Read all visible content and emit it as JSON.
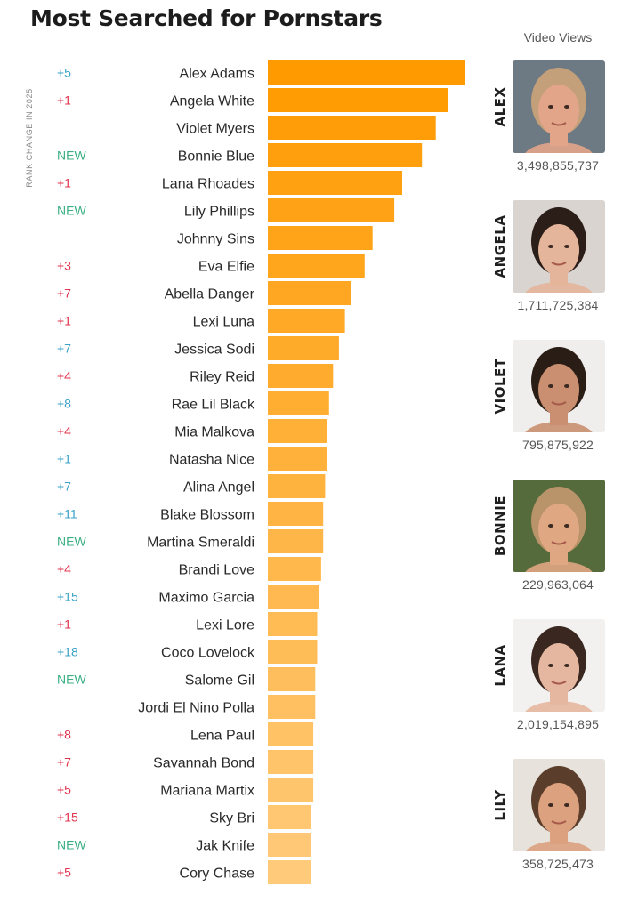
{
  "title": "Most Searched for Pornstars",
  "side_label": "RANK CHANGE IN 2025",
  "views_header": "Video Views",
  "colors": {
    "bar_top": "#ff9a00",
    "bar_bottom": "#ffca7a",
    "up": "#3aa3c7",
    "down": "#e0344f",
    "new": "#3aaf84"
  },
  "chart_data": {
    "type": "bar",
    "orientation": "horizontal",
    "categories": [
      "Alex Adams",
      "Angela White",
      "Violet Myers",
      "Bonnie Blue",
      "Lana Rhoades",
      "Lily Phillips",
      "Johnny Sins",
      "Eva Elfie",
      "Abella Danger",
      "Lexi Luna",
      "Jessica Sodi",
      "Riley Reid",
      "Rae Lil Black",
      "Mia Malkova",
      "Natasha Nice",
      "Alina Angel",
      "Blake Blossom",
      "Martina Smeraldi",
      "Brandi Love",
      "Maximo Garcia",
      "Lexi Lore",
      "Coco Lovelock",
      "Salome Gil",
      "Jordi El Nino Polla",
      "Lena Paul",
      "Savannah Bond",
      "Mariana Martix",
      "Sky Bri",
      "Jak Knife",
      "Cory Chase"
    ],
    "values": [
      100,
      91,
      85,
      78,
      68,
      64,
      53,
      49,
      42,
      39,
      36,
      33,
      31,
      30,
      30,
      29,
      28,
      28,
      27,
      26,
      25,
      25,
      24,
      24,
      23,
      23,
      23,
      22,
      22,
      22
    ],
    "rank_change": [
      "+5",
      "+1",
      "",
      "NEW",
      "+1",
      "NEW",
      "",
      "+3",
      "+7",
      "+1",
      "+7",
      "+4",
      "+8",
      "+4",
      "+1",
      "+7",
      "+11",
      "NEW",
      "+4",
      "+15",
      "+1",
      "+18",
      "NEW",
      "",
      "+8",
      "+7",
      "+5",
      "+15",
      "NEW",
      "+5"
    ],
    "change_direction": [
      "up",
      "down",
      "",
      "new",
      "down",
      "new",
      "",
      "down",
      "down",
      "down",
      "up",
      "down",
      "up",
      "down",
      "up",
      "up",
      "up",
      "new",
      "down",
      "up",
      "down",
      "up",
      "new",
      "",
      "down",
      "down",
      "down",
      "down",
      "new",
      "down"
    ]
  },
  "featured": [
    {
      "nick": "ALEX",
      "views": "3,498,855,737",
      "icon": "portrait-icon"
    },
    {
      "nick": "ANGELA",
      "views": "1,711,725,384",
      "icon": "portrait-icon"
    },
    {
      "nick": "VIOLET",
      "views": "795,875,922",
      "icon": "portrait-icon"
    },
    {
      "nick": "BONNIE",
      "views": "229,963,064",
      "icon": "portrait-icon"
    },
    {
      "nick": "LANA",
      "views": "2,019,154,895",
      "icon": "portrait-icon"
    },
    {
      "nick": "LILY",
      "views": "358,725,473",
      "icon": "portrait-icon"
    }
  ]
}
